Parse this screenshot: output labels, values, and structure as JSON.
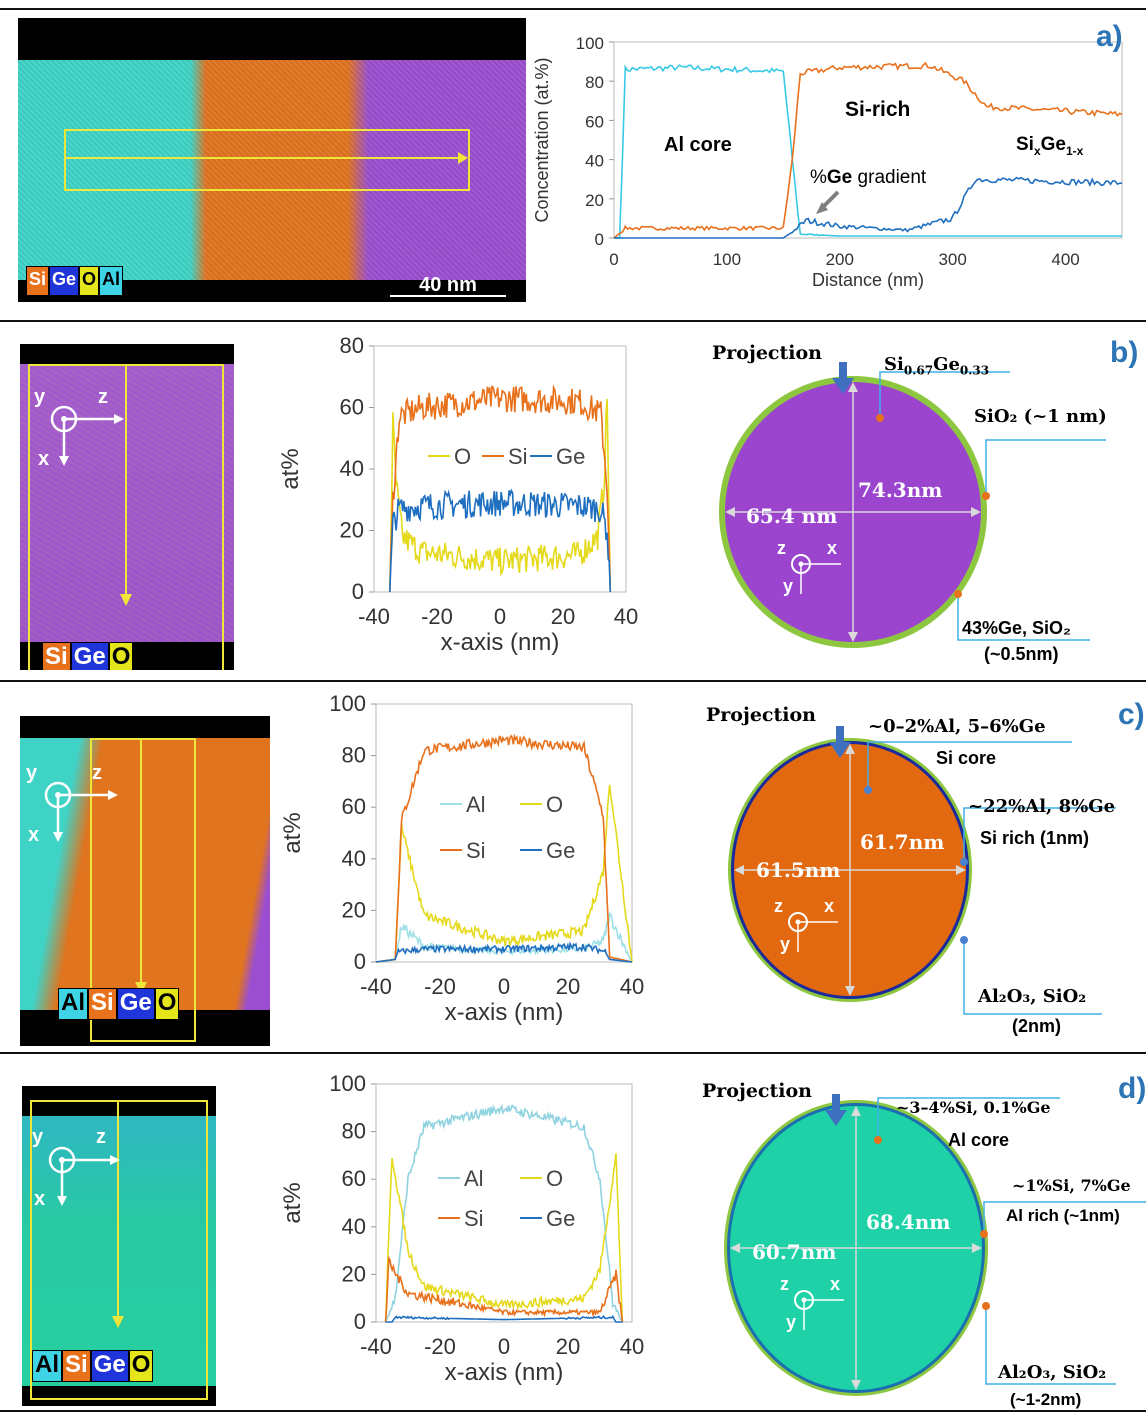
{
  "panels": {
    "a": {
      "label": "a)",
      "scale_bar": "40 nm",
      "legend": [
        "Si",
        "Ge",
        "O",
        "Al"
      ],
      "ylabel": "Concentration (at.%)",
      "xlabel": "Distance (nm)",
      "xticks": [
        "0",
        "100",
        "200",
        "300",
        "400"
      ],
      "yticks": [
        "0",
        "20",
        "40",
        "60",
        "80",
        "100"
      ],
      "annotations": {
        "al_core": "Al core",
        "si_rich": "Si-rich",
        "ge_grad_pre": "%",
        "ge_grad_bold": "Ge",
        "ge_grad_post": " gradient",
        "sige_si": "Si",
        "sige_x": "x",
        "sige_ge": "Ge",
        "sige_1x": "1-x"
      }
    },
    "b": {
      "label": "b)",
      "legend": [
        "Si",
        "Ge",
        "O"
      ],
      "ylabel": "at%",
      "xlabel": "x-axis (nm)",
      "xticks": [
        "-40",
        "-20",
        "0",
        "20",
        "40"
      ],
      "yticks": [
        "0",
        "20",
        "40",
        "60",
        "80"
      ],
      "series_legend": [
        "O",
        "Si",
        "Ge"
      ],
      "projection": "Projection",
      "diameter_h": "65.4 nm",
      "diameter_v": "74.3nm",
      "comp_core": {
        "a": "Si",
        "b": "0.67",
        "c": "Ge",
        "d": "0.33"
      },
      "comp_shell": "SiO₂ (~1 nm)",
      "comp_side_1": "43%Ge, SiO₂",
      "comp_side_2": "(~0.5nm)",
      "axes": {
        "y": "y",
        "z": "z",
        "x": "x"
      }
    },
    "c": {
      "label": "c)",
      "legend": [
        "Al",
        "Si",
        "Ge",
        "O"
      ],
      "ylabel": "at%",
      "xlabel": "x-axis (nm)",
      "xticks": [
        "-40",
        "-20",
        "0",
        "20",
        "40"
      ],
      "yticks": [
        "0",
        "20",
        "40",
        "60",
        "80",
        "100"
      ],
      "series_legend": [
        "Al",
        "O",
        "Si",
        "Ge"
      ],
      "projection": "Projection",
      "diameter_h": "61.5nm",
      "diameter_v": "61.7nm",
      "comp_core_1": "~0–2%Al, 5–6%Ge",
      "comp_core_2": "Si core",
      "comp_shell_1": "~22%Al, 8%Ge",
      "comp_shell_2": "Si rich (1nm)",
      "comp_side_1": "Al₂O₃, SiO₂",
      "comp_side_2": "(2nm)",
      "axes": {
        "y": "y",
        "z": "z",
        "x": "x"
      }
    },
    "d": {
      "label": "d)",
      "legend": [
        "Al",
        "Si",
        "Ge",
        "O"
      ],
      "ylabel": "at%",
      "xlabel": "x-axis (nm)",
      "xticks": [
        "-40",
        "-20",
        "0",
        "20",
        "40"
      ],
      "yticks": [
        "0",
        "20",
        "40",
        "60",
        "80",
        "100"
      ],
      "series_legend": [
        "Al",
        "O",
        "Si",
        "Ge"
      ],
      "projection": "Projection",
      "diameter_h": "60.7nm",
      "diameter_v": "68.4nm",
      "comp_core_1": "~3–4%Si, 0.1%Ge",
      "comp_core_2": "Al core",
      "comp_shell_1": "~1%Si, 7%Ge",
      "comp_shell_2": "Al rich (~1nm)",
      "comp_side_1": "Al₂O₃, SiO₂",
      "comp_side_2": "(~1-2nm)",
      "axes": {
        "y": "y",
        "z": "z",
        "x": "x"
      }
    }
  },
  "colors": {
    "Si": "#e8711c",
    "Ge": "#1f6fc0",
    "O": "#e5d91c",
    "Al": "#3fd3d6",
    "purple": "#9b45cf",
    "orange": "#e2690f",
    "teal": "#1fd1a7",
    "shell": "#8dc63f",
    "blue_arrow": "#3f6fbf"
  },
  "chart_data": [
    {
      "type": "line",
      "title": "",
      "xlabel": "Distance (nm)",
      "ylabel": "Concentration (at.%)",
      "xlim": [
        0,
        450
      ],
      "ylim": [
        0,
        100
      ],
      "series": [
        {
          "name": "Al",
          "color": "#38c9e4",
          "x": [
            0,
            5,
            10,
            60,
            150,
            158,
            165,
            200,
            300,
            450
          ],
          "y": [
            0,
            0,
            86,
            87,
            85,
            40,
            2,
            1,
            1,
            1
          ]
        },
        {
          "name": "Si",
          "color": "#e8711c",
          "x": [
            0,
            10,
            150,
            158,
            165,
            200,
            280,
            310,
            330,
            450
          ],
          "y": [
            0,
            5,
            5,
            40,
            84,
            87,
            88,
            80,
            67,
            63
          ]
        },
        {
          "name": "Ge",
          "color": "#1f6fc0",
          "x": [
            0,
            150,
            160,
            170,
            200,
            260,
            300,
            320,
            450
          ],
          "y": [
            0,
            0,
            4,
            9,
            6,
            4,
            10,
            30,
            28
          ]
        }
      ]
    },
    {
      "type": "line",
      "xlabel": "x-axis (nm)",
      "ylabel": "at%",
      "xlim": [
        -40,
        40
      ],
      "ylim": [
        0,
        80
      ],
      "series": [
        {
          "name": "O",
          "color": "#e5d91c",
          "x": [
            -35,
            -34,
            -33,
            -31,
            -25,
            0,
            25,
            31,
            33,
            34,
            35
          ],
          "y": [
            0,
            55,
            35,
            18,
            13,
            10,
            12,
            18,
            35,
            63,
            0
          ]
        },
        {
          "name": "Si",
          "color": "#e8711c",
          "x": [
            -35,
            -34,
            -32,
            -25,
            0,
            25,
            32,
            34,
            35
          ],
          "y": [
            0,
            30,
            57,
            60,
            63,
            62,
            58,
            35,
            0
          ]
        },
        {
          "name": "Ge",
          "color": "#1f6fc0",
          "x": [
            -35,
            -34,
            -32,
            -25,
            0,
            25,
            32,
            34,
            35
          ],
          "y": [
            0,
            22,
            27,
            28,
            29,
            28,
            27,
            20,
            0
          ]
        }
      ]
    },
    {
      "type": "line",
      "xlabel": "x-axis (nm)",
      "ylabel": "at%",
      "xlim": [
        -40,
        40
      ],
      "ylim": [
        0,
        100
      ],
      "series": [
        {
          "name": "Al",
          "color": "#9ee0e6",
          "x": [
            -40,
            -34,
            -32,
            -25,
            0,
            25,
            31,
            33,
            40
          ],
          "y": [
            0,
            1,
            14,
            6,
            4,
            5,
            8,
            18,
            0
          ]
        },
        {
          "name": "O",
          "color": "#e5d91c",
          "x": [
            -40,
            -34,
            -32,
            -25,
            0,
            25,
            31,
            33,
            40
          ],
          "y": [
            0,
            1,
            52,
            18,
            8,
            12,
            35,
            70,
            0
          ]
        },
        {
          "name": "Si",
          "color": "#e8711c",
          "x": [
            -40,
            -34,
            -32,
            -25,
            0,
            25,
            31,
            33,
            40
          ],
          "y": [
            0,
            1,
            55,
            82,
            86,
            83,
            57,
            2,
            0
          ]
        },
        {
          "name": "Ge",
          "color": "#1f6fc0",
          "x": [
            -40,
            -34,
            -33,
            -25,
            0,
            25,
            32,
            33,
            40
          ],
          "y": [
            0,
            1,
            4,
            5,
            5,
            6,
            4,
            1,
            0
          ]
        }
      ]
    },
    {
      "type": "line",
      "xlabel": "x-axis (nm)",
      "ylabel": "at%",
      "xlim": [
        -40,
        40
      ],
      "ylim": [
        0,
        100
      ],
      "series": [
        {
          "name": "Al",
          "color": "#8fd3e0",
          "x": [
            -37,
            -34,
            -30,
            -25,
            0,
            25,
            30,
            34,
            37
          ],
          "y": [
            0,
            10,
            60,
            82,
            90,
            82,
            60,
            8,
            0
          ]
        },
        {
          "name": "O",
          "color": "#e5d91c",
          "x": [
            -37,
            -35,
            -30,
            -25,
            0,
            25,
            30,
            35,
            37
          ],
          "y": [
            0,
            70,
            30,
            15,
            7,
            10,
            22,
            70,
            0
          ]
        },
        {
          "name": "Si",
          "color": "#e8711c",
          "x": [
            -37,
            -36,
            -30,
            0,
            30,
            35,
            37
          ],
          "y": [
            0,
            25,
            12,
            4,
            4,
            20,
            0
          ]
        },
        {
          "name": "Ge",
          "color": "#1f6fc0",
          "x": [
            -37,
            -35,
            -34,
            0,
            34,
            35,
            37
          ],
          "y": [
            0,
            0,
            2,
            1,
            2,
            0,
            0
          ]
        }
      ]
    }
  ]
}
